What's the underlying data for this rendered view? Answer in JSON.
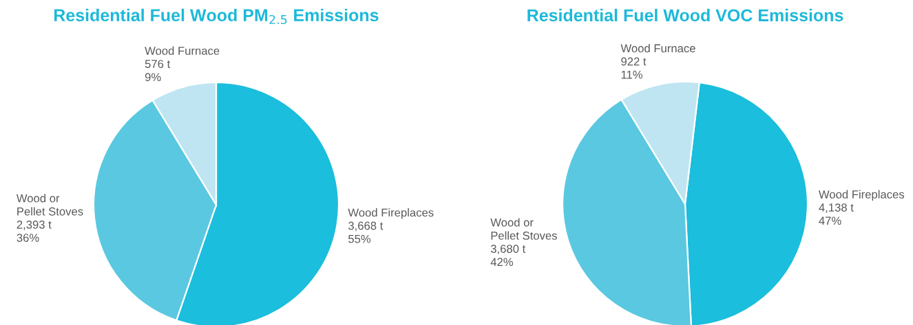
{
  "chart_data": [
    {
      "type": "pie",
      "title": "Residential Fuel Wood PM$_{2.5}$ Emissions",
      "categories": [
        "Wood Fireplaces",
        "Wood or\nPellet Stoves",
        "Wood Furnace"
      ],
      "values": [
        3668,
        2393,
        576
      ],
      "colors": [
        "#1bbedc",
        "#5ac8e0",
        "#bee5f1"
      ],
      "value_labels": [
        "3,668 t\n55%",
        "2,393 t\n36%",
        "576 t\n9%"
      ]
    },
    {
      "type": "pie",
      "title": "Residential Fuel Wood VOC Emissions",
      "categories": [
        "Wood Fireplaces",
        "Wood or\nPellet Stoves",
        "Wood Furnace"
      ],
      "values": [
        4138,
        3680,
        922
      ],
      "colors": [
        "#1bbedc",
        "#5ac8e0",
        "#bee5f1"
      ],
      "value_labels": [
        "4,138 t\n47%",
        "3,680 t\n42%",
        "922 t\n11%"
      ]
    }
  ]
}
